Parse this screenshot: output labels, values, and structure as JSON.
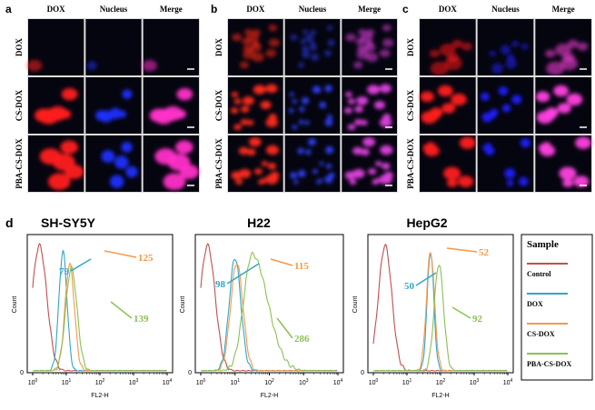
{
  "panels": [
    {
      "label": "a",
      "columns": [
        "DOX",
        "Nucleus",
        "Merge"
      ],
      "rows": [
        "DOX",
        "CS-DOX",
        "PBA-CS-DOX"
      ]
    },
    {
      "label": "b",
      "columns": [
        "DOX",
        "Nucleus",
        "Merge"
      ],
      "rows": [
        "DOX",
        "CS-DOX",
        "PBA-CS-DOX"
      ]
    },
    {
      "label": "c",
      "columns": [
        "DOX",
        "Nucleus",
        "Merge"
      ],
      "rows": [
        "DOX",
        "CS-DOX",
        "PBA-CS-DOX"
      ]
    }
  ],
  "panel_d": {
    "label": "d",
    "plots": [
      {
        "title": "SH-SY5Y",
        "annotations": [
          "79",
          "125",
          "139"
        ]
      },
      {
        "title": "H22",
        "annotations": [
          "98",
          "115",
          "286"
        ]
      },
      {
        "title": "HepG2",
        "annotations": [
          "50",
          "52",
          "92"
        ]
      }
    ],
    "x_label": "FL2-H",
    "y_label": "Count",
    "y_tick": "0",
    "xticks": [
      {
        "base": "10",
        "exp": "0"
      },
      {
        "base": "10",
        "exp": "1"
      },
      {
        "base": "10",
        "exp": "2"
      },
      {
        "base": "10",
        "exp": "3"
      },
      {
        "base": "10",
        "exp": "4"
      }
    ],
    "legend": {
      "title": "Sample",
      "entries": [
        "Control",
        "DOX",
        "CS-DOX",
        "PBA-CS-DOX"
      ]
    }
  }
}
